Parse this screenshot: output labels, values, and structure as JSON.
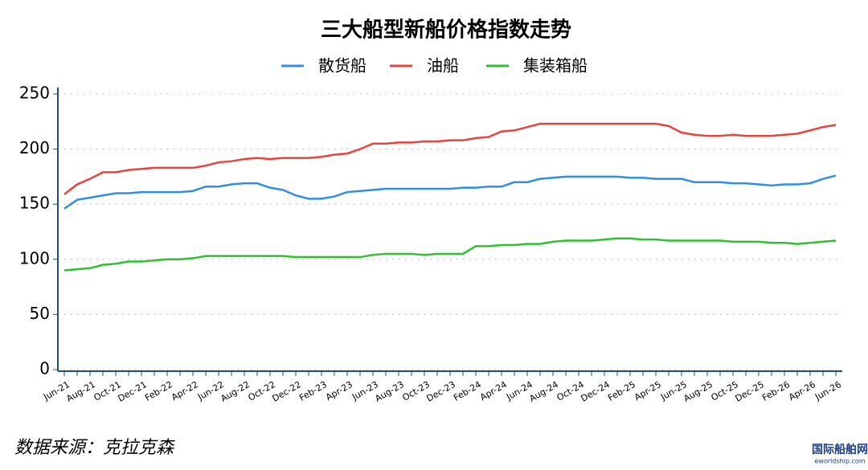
{
  "chart_data": {
    "type": "line",
    "title": "三大船型新船价格指数走势",
    "categories": [
      "Jun-21",
      null,
      "Aug-21",
      null,
      "Oct-21",
      null,
      "Dec-21",
      null,
      "Feb-22",
      null,
      "Apr-22",
      null,
      "Jun-22",
      null,
      "Aug-22",
      null,
      "Oct-22",
      null,
      "Dec-22",
      null,
      "Feb-23",
      null,
      "Apr-23",
      null,
      "Jun-23",
      null,
      "Aug-23",
      null,
      "Oct-23",
      null,
      "Dec-23",
      null,
      "Feb-24",
      null,
      "Apr-24",
      null,
      "Jun-24",
      null,
      "Aug-24",
      null,
      "Oct-24",
      null,
      "Dec-24",
      null,
      "Feb-25",
      null,
      "Apr-25",
      null,
      "Jun-25",
      null,
      "Aug-25",
      null,
      "Oct-25",
      null,
      "Dec-25",
      null,
      "Feb-26",
      null,
      "Apr-26",
      null,
      "Jun-26"
    ],
    "series": [
      {
        "name": "散货船",
        "color": "#2f8fe6",
        "values": [
          146,
          154,
          156,
          158,
          160,
          160,
          161,
          161,
          161,
          161,
          162,
          166,
          166,
          168,
          169,
          169,
          165,
          163,
          158,
          155,
          155,
          157,
          161,
          162,
          163,
          164,
          164,
          164,
          164,
          164,
          164,
          165,
          165,
          166,
          166,
          170,
          170,
          173,
          174,
          175,
          175,
          175,
          175,
          175,
          174,
          174,
          173,
          173,
          173,
          170,
          170,
          170,
          169,
          169,
          168,
          167,
          168,
          168,
          169,
          173,
          176
        ]
      },
      {
        "name": "油船",
        "color": "#e8433f",
        "values": [
          159,
          168,
          173,
          179,
          179,
          181,
          182,
          183,
          183,
          183,
          183,
          185,
          188,
          189,
          191,
          192,
          191,
          192,
          192,
          192,
          193,
          195,
          196,
          200,
          205,
          205,
          206,
          206,
          207,
          207,
          208,
          208,
          210,
          211,
          216,
          217,
          220,
          223,
          223,
          223,
          223,
          223,
          223,
          223,
          223,
          223,
          223,
          221,
          215,
          213,
          212,
          212,
          213,
          212,
          212,
          212,
          213,
          214,
          217,
          220,
          222
        ]
      },
      {
        "name": "集装箱船",
        "color": "#2fbf2f",
        "values": [
          90,
          91,
          92,
          95,
          96,
          98,
          98,
          99,
          100,
          100,
          101,
          103,
          103,
          103,
          103,
          103,
          103,
          103,
          102,
          102,
          102,
          102,
          102,
          102,
          104,
          105,
          105,
          105,
          104,
          105,
          105,
          105,
          112,
          112,
          113,
          113,
          114,
          114,
          116,
          117,
          117,
          117,
          118,
          119,
          119,
          118,
          118,
          117,
          117,
          117,
          117,
          117,
          116,
          116,
          116,
          115,
          115,
          114,
          115,
          116,
          117
        ]
      }
    ],
    "ylim": [
      0,
      250
    ],
    "yticks": [
      0,
      50,
      100,
      150,
      200,
      250
    ],
    "grid": true,
    "source": "数据来源：克拉克森",
    "watermark": "国际船舶网",
    "watermark_url": "eworldship.com"
  }
}
